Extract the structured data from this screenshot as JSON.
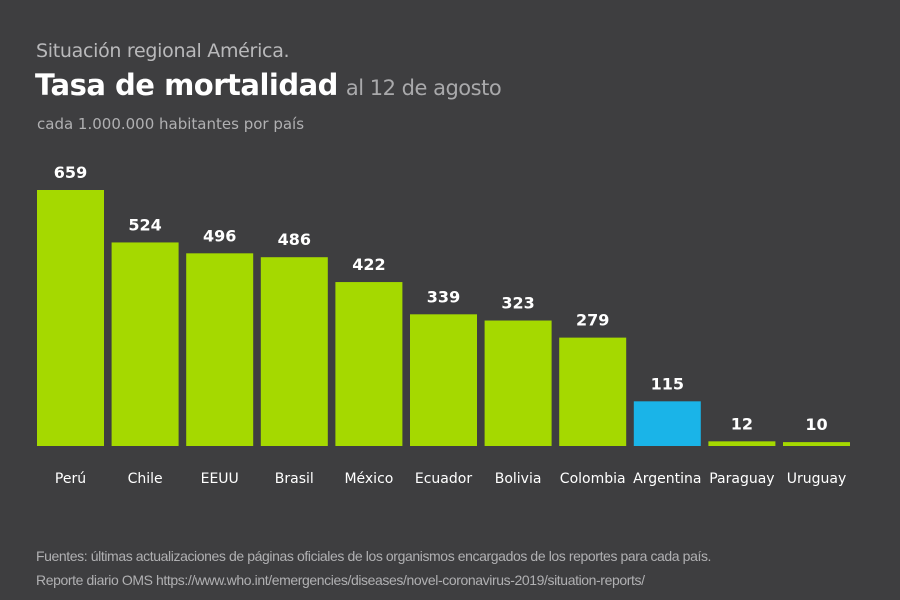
{
  "chart_data": {
    "type": "bar",
    "supertitle": "Situación regional América.",
    "title": "Tasa de mortalidad",
    "title_suffix": "al 12 de agosto",
    "subtitle": "cada 1.000.000 habitantes por país",
    "categories": [
      "Perú",
      "Chile",
      "EEUU",
      "Brasil",
      "México",
      "Ecuador",
      "Bolivia",
      "Colombia",
      "Argentina",
      "Paraguay",
      "Uruguay"
    ],
    "values": [
      659,
      524,
      496,
      486,
      422,
      339,
      323,
      279,
      115,
      12,
      10
    ],
    "highlight": "Argentina",
    "colors": {
      "default": "#a5d900",
      "highlight": "#1ab4e8",
      "background": "#3e3e40"
    },
    "ylim": [
      0,
      659
    ],
    "grid": false,
    "data_labels": true
  },
  "footer": {
    "line1": "Fuentes: últimas actualizaciones de páginas oficiales de los organismos encargados de los reportes para cada país.",
    "line2": "Reporte diario OMS https://www.who.int/emergencies/diseases/novel-coronavirus-2019/situation-reports/"
  }
}
